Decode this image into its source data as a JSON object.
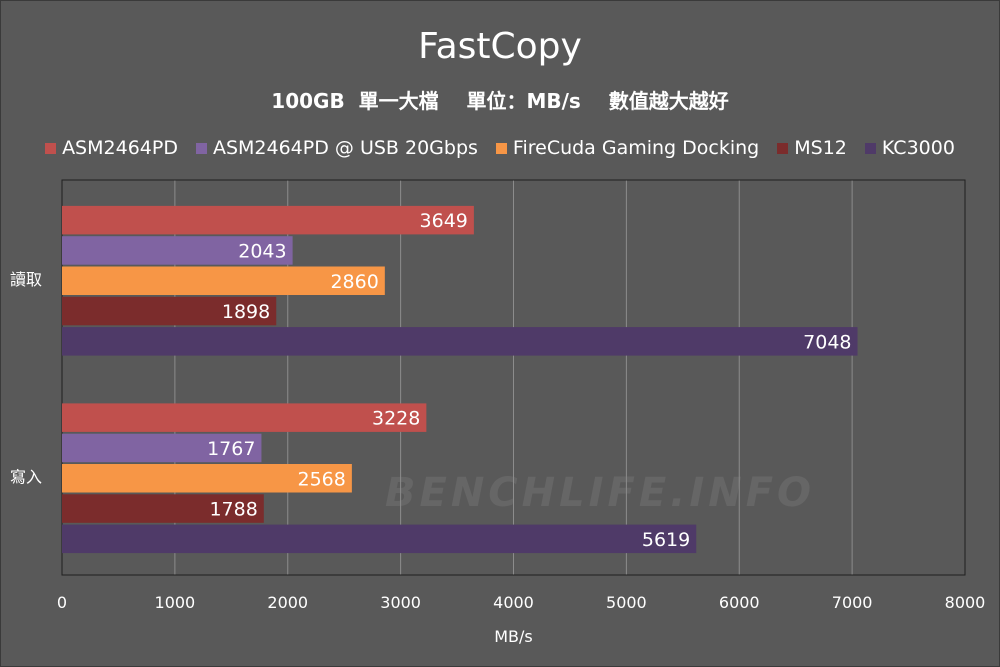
{
  "chart_data": {
    "type": "bar",
    "orientation": "horizontal",
    "title": "FastCopy",
    "subtitle": "100GB  單一大檔    單位：MB/s    數值越大越好",
    "xlabel": "MB/s",
    "ylabel": "",
    "xlim": [
      0,
      8000
    ],
    "x_ticks": [
      0,
      1000,
      2000,
      3000,
      4000,
      5000,
      6000,
      7000,
      8000
    ],
    "categories": [
      "讀取",
      "寫入"
    ],
    "series": [
      {
        "name": "ASM2464PD",
        "color": "#c0504d",
        "values": [
          3649,
          3228
        ]
      },
      {
        "name": "ASM2464PD @ USB 20Gbps",
        "color": "#8064a2",
        "values": [
          2043,
          1767
        ]
      },
      {
        "name": "FireCuda Gaming Docking",
        "color": "#f79646",
        "values": [
          2860,
          2568
        ]
      },
      {
        "name": "MS12",
        "color": "#7b2c2c",
        "values": [
          1898,
          1788
        ]
      },
      {
        "name": "KC3000",
        "color": "#4f3a68",
        "values": [
          7048,
          5619
        ]
      }
    ],
    "grid": true,
    "legend_position": "top"
  },
  "watermark": "BENCHLIFE.INFO",
  "colors": {
    "background": "#595959",
    "plot_border": "#1f1f1f",
    "gridline": "#8c8c8c",
    "text": "#ffffff"
  }
}
